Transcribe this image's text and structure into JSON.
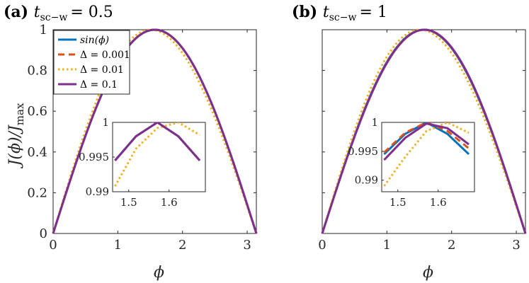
{
  "chart_data": [
    {
      "type": "line",
      "panel_label": "(a)",
      "title_var": "t",
      "title_sub": "sc−w",
      "title_value": "= 0.5",
      "xlabel": "ϕ",
      "ylabel": "J(ϕ)/J",
      "ylabel_sub": "max",
      "xlim": [
        0,
        3.1416
      ],
      "ylim": [
        0,
        1
      ],
      "xticks": [
        0,
        1,
        2,
        3
      ],
      "yticks": [
        0,
        0.2,
        0.4,
        0.6,
        0.8,
        1
      ],
      "xtick_labels": [
        "0",
        "1",
        "2",
        "3"
      ],
      "ytick_labels": [
        "0",
        "0.2",
        "0.4",
        "0.6",
        "0.8",
        "1"
      ],
      "series": [
        {
          "name": "sin(ϕ)",
          "color": "#0072BD",
          "style": "solid",
          "offset": 0.0
        },
        {
          "name": "Δ = 0.001",
          "color": "#D95319",
          "style": "dashed",
          "offset": 0.0
        },
        {
          "name": "Δ = 0.01",
          "color": "#EDB120",
          "style": "dotted",
          "offset": 0.06
        },
        {
          "name": "Δ = 0.1",
          "color": "#7E2F8E",
          "style": "solid",
          "offset": 0.0
        }
      ],
      "legend": {
        "location": "top-left"
      },
      "inset": {
        "xlim": [
          1.46,
          1.69
        ],
        "ylim": [
          0.99,
          1.0
        ],
        "xticks": [
          1.5,
          1.6
        ],
        "yticks": [
          0.99,
          0.995,
          1
        ],
        "xtick_labels": [
          "1.5",
          "1.6"
        ],
        "ytick_labels": [
          "0.99",
          "0.995",
          "1"
        ],
        "x": [
          1.466,
          1.518,
          1.571,
          1.623,
          1.676
        ],
        "series": [
          {
            "name": "sin(ϕ)",
            "values": [
              0.9945,
              0.998,
              1.0,
              0.998,
              0.9945
            ]
          },
          {
            "name": "Δ = 0.001",
            "values": [
              0.9945,
              0.998,
              1.0,
              0.998,
              0.9945
            ]
          },
          {
            "name": "Δ = 0.01",
            "values": [
              0.9908,
              0.9962,
              0.9992,
              1.0,
              0.9982
            ]
          },
          {
            "name": "Δ = 0.1",
            "values": [
              0.9945,
              0.998,
              1.0,
              0.998,
              0.9945
            ]
          }
        ]
      }
    },
    {
      "type": "line",
      "panel_label": "(b)",
      "title_var": "t",
      "title_sub": "sc−w",
      "title_value": "= 1",
      "xlabel": "ϕ",
      "ylabel": "",
      "ylabel_sub": "",
      "xlim": [
        0,
        3.1416
      ],
      "ylim": [
        0,
        1
      ],
      "xticks": [
        0,
        1,
        2,
        3
      ],
      "yticks": [
        0,
        0.2,
        0.4,
        0.6,
        0.8,
        1
      ],
      "xtick_labels": [
        "0",
        "1",
        "2",
        "3"
      ],
      "ytick_labels": [],
      "series": [
        {
          "name": "sin(ϕ)",
          "color": "#0072BD",
          "style": "solid",
          "offset": 0.0
        },
        {
          "name": "Δ = 0.001",
          "color": "#D95319",
          "style": "dashed",
          "offset": -0.005
        },
        {
          "name": "Δ = 0.01",
          "color": "#EDB120",
          "style": "dotted",
          "offset": 0.06
        },
        {
          "name": "Δ = 0.1",
          "color": "#7E2F8E",
          "style": "solid",
          "offset": -0.01
        }
      ],
      "legend": null,
      "inset": {
        "xlim": [
          1.46,
          1.69
        ],
        "ylim": [
          0.988,
          1.0
        ],
        "xticks": [
          1.5,
          1.6
        ],
        "yticks": [
          0.99,
          0.995,
          1
        ],
        "xtick_labels": [
          "1.5",
          "1.6"
        ],
        "ytick_labels": [
          "0.99",
          "0.995",
          "1"
        ],
        "x": [
          1.466,
          1.518,
          1.571,
          1.623,
          1.676
        ],
        "series": [
          {
            "name": "sin(ϕ)",
            "values": [
              0.9945,
              0.998,
              1.0,
              0.998,
              0.9945
            ]
          },
          {
            "name": "Δ = 0.001",
            "values": [
              0.9948,
              0.9982,
              1.0,
              0.9985,
              0.9955
            ]
          },
          {
            "name": "Δ = 0.01",
            "values": [
              0.989,
              0.994,
              0.9985,
              1.0,
              0.9982
            ]
          },
          {
            "name": "Δ = 0.1",
            "values": [
              0.9935,
              0.9973,
              0.9998,
              0.999,
              0.9962
            ]
          }
        ]
      }
    }
  ]
}
